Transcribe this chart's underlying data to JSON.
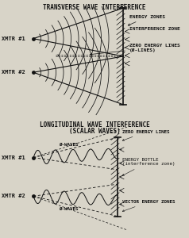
{
  "bg_color": "#d8d4c8",
  "title1": "TRANSVERSE WAVE INTERFERENCE",
  "title2": "LONGITUDINAL WAVE INTERFERENCE\n(SCALAR WAVES)",
  "xmtr1_label": "XMTR #1",
  "xmtr2_label": "XMTR #2",
  "top_labels": {
    "energy_zones": "ENERGY ZONES",
    "interference_zone": "INTERFERENCE ZONE",
    "zero_energy_lines": "ZERO ENERGY LINES\n(Ø-LINES)"
  },
  "bot_labels": {
    "zero_energy_lines": "ZERO ENERGY LINES",
    "energy_bottle": "ENERGY BOTTLE\n(interference zone)",
    "vector_energy": "VECTOR ENERGY ZONES",
    "phi_waves_top": "Ø-WAVES",
    "phi_waves_bot": "Ø-WAVES"
  },
  "line_color": "#111111",
  "text_color": "#111111"
}
